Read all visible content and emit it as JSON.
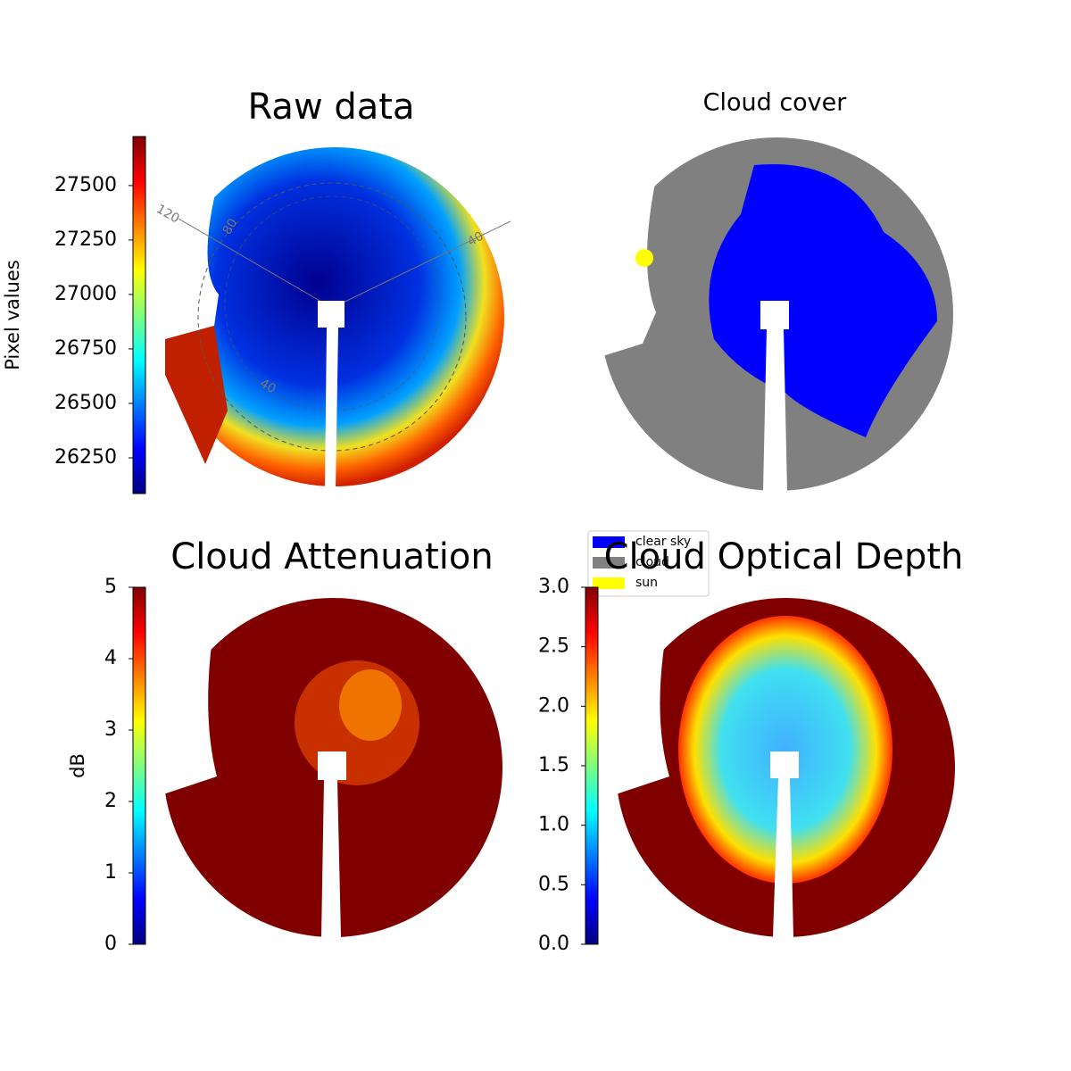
{
  "chart_data": [
    {
      "type": "image",
      "title": "Raw data",
      "colorbar_label": "Pixel values",
      "clim": [
        26086,
        27725
      ],
      "cticks": [
        26250,
        26500,
        26750,
        27000,
        27250,
        27500
      ],
      "annotations": [
        "120",
        "80",
        "40",
        "40"
      ]
    },
    {
      "type": "image",
      "title": "Cloud cover",
      "legend": [
        {
          "name": "clear sky",
          "color": "#0000ff"
        },
        {
          "name": "cloud",
          "color": "#808080"
        },
        {
          "name": "sun",
          "color": "#ffff00"
        }
      ]
    },
    {
      "type": "image",
      "title": "Cloud Attenuation",
      "colorbar_label": "dB",
      "clim": [
        0,
        5
      ],
      "cticks": [
        0,
        1,
        2,
        3,
        4,
        5
      ]
    },
    {
      "type": "image",
      "title": "Cloud Optical Depth",
      "clim": [
        0,
        3
      ],
      "cticks": [
        {
          "value": 0,
          "label": "0.0"
        },
        {
          "value": 0.5,
          "label": "0.5"
        },
        {
          "value": 1,
          "label": "1.0"
        },
        {
          "value": 1.5,
          "label": "1.5"
        },
        {
          "value": 2,
          "label": "2.0"
        },
        {
          "value": 2.5,
          "label": "2.5"
        },
        {
          "value": 3,
          "label": "3.0"
        }
      ]
    }
  ]
}
